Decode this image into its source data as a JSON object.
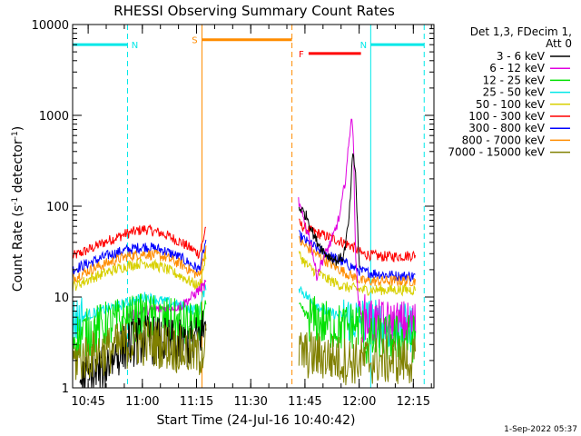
{
  "chart_data": {
    "type": "line",
    "title": "RHESSI Observing Summary Count Rates",
    "xlabel": "Start Time (24-Jul-16 10:40:42)",
    "ylabel_main": "Count Rate (s",
    "ylabel_sup1": "-1",
    "ylabel_mid": " detector",
    "ylabel_sup2": "-1",
    "ylabel_end": ")",
    "yscale": "log",
    "ylim": [
      1,
      10000
    ],
    "xlim_minutes": [
      0,
      100
    ],
    "y_ticks": [
      {
        "value": 1,
        "label": "1"
      },
      {
        "value": 10,
        "label": "10"
      },
      {
        "value": 100,
        "label": "100"
      },
      {
        "value": 1000,
        "label": "1000"
      },
      {
        "value": 10000,
        "label": "10000"
      }
    ],
    "x_ticks": [
      {
        "minute": 4.3,
        "label": "10:45"
      },
      {
        "minute": 19.3,
        "label": "11:00"
      },
      {
        "minute": 34.3,
        "label": "11:15"
      },
      {
        "minute": 49.3,
        "label": "11:30"
      },
      {
        "minute": 64.3,
        "label": "11:45"
      },
      {
        "minute": 79.3,
        "label": "12:00"
      },
      {
        "minute": 94.3,
        "label": "12:15"
      }
    ],
    "legend": {
      "header1": "Det 1,3, FDecim 1,",
      "header2": "Att 0",
      "entries": [
        {
          "label": "3 - 6 keV",
          "color": "#000000"
        },
        {
          "label": "6 - 12 keV",
          "color": "#e000e0"
        },
        {
          "label": "12 - 25 keV",
          "color": "#00e000"
        },
        {
          "label": "25 - 50 keV",
          "color": "#00e8e8"
        },
        {
          "label": "50 - 100 keV",
          "color": "#d8d000"
        },
        {
          "label": "100 - 300 keV",
          "color": "#ff0000"
        },
        {
          "label": "300 - 800 keV",
          "color": "#0000ff"
        },
        {
          "label": "800 - 7000 keV",
          "color": "#ff8c00"
        },
        {
          "label": "7000 - 15000 keV",
          "color": "#808000"
        }
      ]
    },
    "annotations": [
      {
        "label": "N",
        "type": "night",
        "start_minute": 0,
        "end_minute": 15.2,
        "color": "#00e8e8",
        "level": 6000
      },
      {
        "label": "N",
        "type": "night",
        "start_minute": 82.5,
        "end_minute": 97.3,
        "color": "#00e8e8",
        "level": 6000
      },
      {
        "label": "S",
        "type": "saa",
        "start_minute": 35.8,
        "end_minute": 60.7,
        "color": "#ff8c00",
        "level": 6800
      },
      {
        "label": "F",
        "type": "flare",
        "start_minute": 65.3,
        "end_minute": 79.8,
        "color": "#ff0000",
        "level": 4800
      }
    ],
    "data_gap_minutes": [
      37.0,
      62.5
    ],
    "series": [
      {
        "name": "100 - 300 keV",
        "color": "#ff0000",
        "points": [
          [
            0,
            28
          ],
          [
            5,
            34
          ],
          [
            10,
            42
          ],
          [
            15,
            50
          ],
          [
            20,
            56
          ],
          [
            25,
            50
          ],
          [
            30,
            40
          ],
          [
            35,
            30
          ],
          [
            36,
            40
          ],
          [
            37,
            65
          ],
          [
            62.5,
            65
          ],
          [
            65,
            55
          ],
          [
            70,
            47
          ],
          [
            75,
            40
          ],
          [
            78,
            35
          ],
          [
            80,
            30
          ],
          [
            85,
            28
          ],
          [
            90,
            28
          ],
          [
            95,
            29
          ]
        ]
      },
      {
        "name": "300 - 800 keV",
        "color": "#0000ff",
        "points": [
          [
            0,
            20
          ],
          [
            5,
            24
          ],
          [
            10,
            29
          ],
          [
            15,
            33
          ],
          [
            20,
            36
          ],
          [
            25,
            33
          ],
          [
            30,
            27
          ],
          [
            35,
            20
          ],
          [
            36,
            28
          ],
          [
            37,
            45
          ],
          [
            62.5,
            48
          ],
          [
            65,
            40
          ],
          [
            70,
            30
          ],
          [
            75,
            24
          ],
          [
            80,
            19
          ],
          [
            85,
            18
          ],
          [
            90,
            17
          ],
          [
            95,
            17
          ]
        ]
      },
      {
        "name": "800 - 7000 keV",
        "color": "#ff8c00",
        "points": [
          [
            0,
            16
          ],
          [
            5,
            20
          ],
          [
            10,
            24
          ],
          [
            15,
            28
          ],
          [
            20,
            30
          ],
          [
            25,
            28
          ],
          [
            30,
            23
          ],
          [
            35,
            17
          ],
          [
            36,
            24
          ],
          [
            37,
            38
          ],
          [
            62.5,
            42
          ],
          [
            65,
            35
          ],
          [
            70,
            25
          ],
          [
            75,
            19
          ],
          [
            80,
            15
          ],
          [
            85,
            15
          ],
          [
            90,
            15
          ],
          [
            95,
            15
          ]
        ]
      },
      {
        "name": "50 - 100 keV",
        "color": "#d8d000",
        "points": [
          [
            0,
            13
          ],
          [
            5,
            16
          ],
          [
            10,
            19
          ],
          [
            15,
            22
          ],
          [
            20,
            24
          ],
          [
            25,
            21
          ],
          [
            30,
            17
          ],
          [
            35,
            13
          ],
          [
            36,
            19
          ],
          [
            37,
            30
          ],
          [
            62.5,
            30
          ],
          [
            65,
            22
          ],
          [
            70,
            16
          ],
          [
            75,
            13
          ],
          [
            80,
            12
          ],
          [
            85,
            12
          ],
          [
            90,
            12
          ],
          [
            95,
            12
          ]
        ]
      },
      {
        "name": "25 - 50 keV",
        "color": "#00e8e8",
        "points": [
          [
            0,
            5.5
          ],
          [
            5,
            6.5
          ],
          [
            10,
            7.5
          ],
          [
            15,
            8.5
          ],
          [
            20,
            10
          ],
          [
            25,
            9
          ],
          [
            30,
            8
          ],
          [
            35,
            7
          ],
          [
            36,
            10
          ],
          [
            37,
            14
          ],
          [
            62.5,
            13
          ],
          [
            65,
            10
          ],
          [
            70,
            7
          ],
          [
            75,
            6
          ],
          [
            80,
            5.5
          ],
          [
            85,
            5
          ],
          [
            90,
            4.5
          ],
          [
            95,
            4.5
          ]
        ]
      },
      {
        "name": "6 - 12 keV",
        "color": "#e000e0",
        "points": [
          [
            15,
            6
          ],
          [
            20,
            7
          ],
          [
            25,
            7.5
          ],
          [
            30,
            8
          ],
          [
            33,
            10
          ],
          [
            35,
            12
          ],
          [
            37,
            14
          ],
          [
            62.5,
            115
          ],
          [
            63.5,
            80
          ],
          [
            66,
            40
          ],
          [
            67.5,
            17
          ],
          [
            68.5,
            22
          ],
          [
            70,
            30
          ],
          [
            72,
            45
          ],
          [
            74,
            80
          ],
          [
            75.5,
            200
          ],
          [
            76.5,
            500
          ],
          [
            77.2,
            1100
          ],
          [
            77.8,
            400
          ],
          [
            78.3,
            30
          ],
          [
            79,
            10
          ],
          [
            80,
            6
          ],
          [
            85,
            5
          ],
          [
            90,
            5
          ],
          [
            95,
            5
          ]
        ]
      },
      {
        "name": "12 - 25 keV",
        "color": "#00e000",
        "points": [
          [
            0,
            3.5
          ],
          [
            5,
            4.2
          ],
          [
            10,
            5
          ],
          [
            15,
            5.5
          ],
          [
            20,
            6
          ],
          [
            25,
            5.5
          ],
          [
            30,
            5
          ],
          [
            35,
            4.5
          ],
          [
            36,
            6
          ],
          [
            37,
            9
          ],
          [
            62.5,
            8
          ],
          [
            65,
            6
          ],
          [
            70,
            5
          ],
          [
            75,
            4.5
          ],
          [
            78,
            5
          ],
          [
            80,
            5
          ],
          [
            81,
            3
          ],
          [
            85,
            3.5
          ],
          [
            90,
            3.5
          ],
          [
            95,
            3.5
          ]
        ]
      },
      {
        "name": "3 - 6 keV",
        "color": "#000000",
        "points": [
          [
            2,
            1.2
          ],
          [
            5,
            1.3
          ],
          [
            8,
            1.5
          ],
          [
            10,
            2
          ],
          [
            15,
            3
          ],
          [
            20,
            3.5
          ],
          [
            25,
            3.2
          ],
          [
            30,
            3
          ],
          [
            33,
            3
          ],
          [
            62.5,
            100
          ],
          [
            63.5,
            90
          ],
          [
            65,
            75
          ],
          [
            67,
            45
          ],
          [
            70,
            30
          ],
          [
            73,
            25
          ],
          [
            75,
            28
          ],
          [
            76.5,
            70
          ],
          [
            77.5,
            360
          ],
          [
            78.3,
            250
          ],
          [
            79,
            40
          ],
          [
            79.5,
            20
          ]
        ]
      },
      {
        "name": "7000 - 15000 keV",
        "color": "#808000",
        "points": [
          [
            0,
            2
          ],
          [
            5,
            2.3
          ],
          [
            10,
            2.6
          ],
          [
            15,
            3
          ],
          [
            20,
            3.2
          ],
          [
            25,
            3
          ],
          [
            30,
            2.6
          ],
          [
            35,
            2.3
          ],
          [
            37,
            3
          ],
          [
            62.5,
            2.5
          ],
          [
            65,
            2.3
          ],
          [
            70,
            2.2
          ],
          [
            75,
            2
          ],
          [
            80,
            2
          ],
          [
            85,
            2
          ],
          [
            90,
            2
          ],
          [
            95,
            2
          ]
        ]
      }
    ],
    "timestamp": "1-Sep-2022 05:37"
  }
}
